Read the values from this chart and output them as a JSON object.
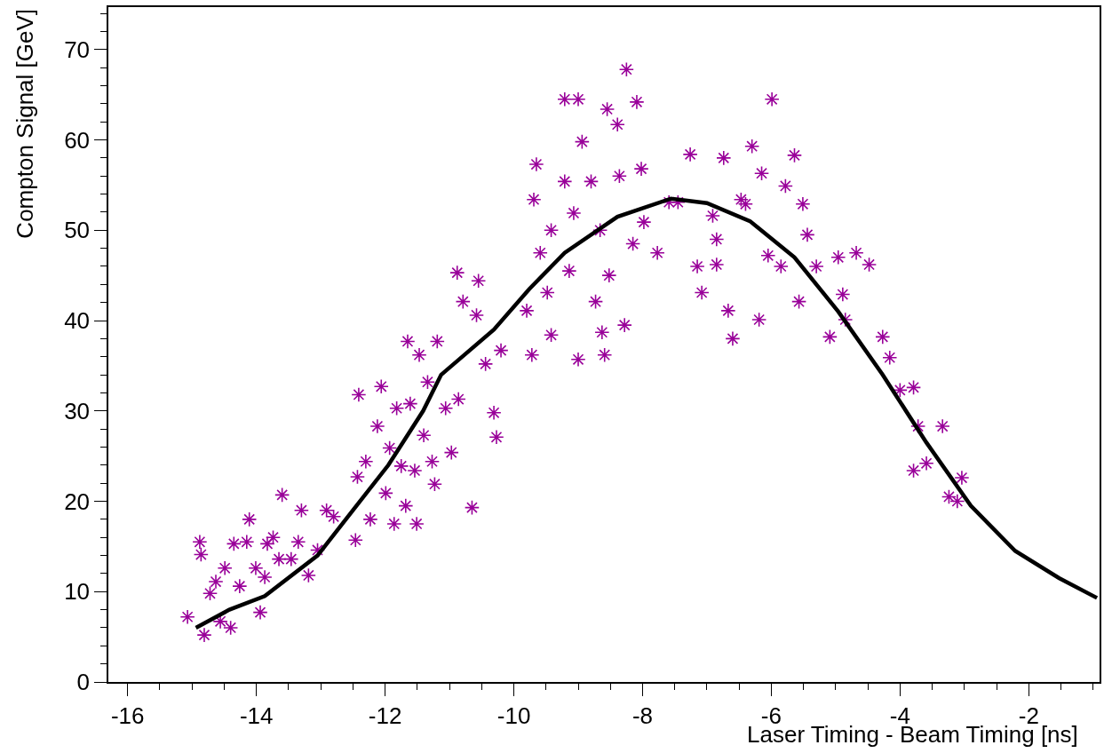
{
  "chart_data": {
    "type": "scatter",
    "xlabel": "Laser Timing - Beam Timing [ns]",
    "ylabel": "Compton Signal [GeV]",
    "xlim": [
      -16.3,
      -0.9
    ],
    "xticks": [
      -16,
      -14,
      -12,
      -10,
      -8,
      -6,
      -4,
      -2
    ],
    "ylim": [
      0,
      74.7
    ],
    "yticks": [
      0,
      10,
      20,
      30,
      40,
      50,
      60,
      70
    ],
    "series": [
      {
        "marker": "cross",
        "color": "#990099",
        "x": [
          -15.07,
          -14.88,
          -14.86,
          -14.81,
          -14.72,
          -14.63,
          -14.56,
          -14.49,
          -14.4,
          -14.35,
          -14.26,
          -14.15,
          -14.11,
          -14.01,
          -13.94,
          -13.87,
          -13.83,
          -13.74,
          -13.65,
          -13.6,
          -13.46,
          -13.35,
          -13.3,
          -13.19,
          -13.05,
          -12.91,
          -12.8,
          -12.46,
          -12.43,
          -12.41,
          -12.3,
          -12.23,
          -12.12,
          -12.06,
          -11.99,
          -11.93,
          -11.86,
          -11.82,
          -11.75,
          -11.68,
          -11.65,
          -11.61,
          -11.54,
          -11.51,
          -11.47,
          -11.4,
          -11.34,
          -11.27,
          -11.23,
          -11.19,
          -11.06,
          -10.97,
          -10.88,
          -10.86,
          -10.79,
          -10.65,
          -10.55,
          -10.58,
          -10.44,
          -10.31,
          -10.27,
          -10.2,
          -9.8,
          -9.72,
          -9.69,
          -9.59,
          -9.65,
          -9.48,
          -9.42,
          -9.42,
          -9.21,
          -9.21,
          -9.14,
          -9.07,
          -9.0,
          -9.0,
          -8.94,
          -8.8,
          -8.73,
          -8.66,
          -8.63,
          -8.55,
          -8.52,
          -8.59,
          -8.39,
          -8.36,
          -8.28,
          -8.25,
          -8.15,
          -8.09,
          -8.02,
          -7.98,
          -7.77,
          -7.59,
          -7.45,
          -7.26,
          -7.15,
          -7.08,
          -6.91,
          -6.85,
          -6.85,
          -6.74,
          -6.67,
          -6.6,
          -6.47,
          -6.4,
          -6.3,
          -6.19,
          -6.15,
          -6.05,
          -5.99,
          -5.85,
          -5.78,
          -5.64,
          -5.57,
          -5.51,
          -5.44,
          -5.3,
          -5.09,
          -4.96,
          -4.89,
          -4.85,
          -4.68,
          -4.48,
          -4.27,
          -4.16,
          -4.0,
          -3.79,
          -3.79,
          -3.72,
          -3.59,
          -3.34,
          -3.24,
          -3.11,
          -3.04
        ],
        "values": [
          7.2,
          15.5,
          14.1,
          5.2,
          9.8,
          11.1,
          6.7,
          12.6,
          6.0,
          15.3,
          10.6,
          15.5,
          18.0,
          12.6,
          7.7,
          11.6,
          15.3,
          16.0,
          13.6,
          20.7,
          13.6,
          15.5,
          19.0,
          11.8,
          14.6,
          19.0,
          18.3,
          15.7,
          22.7,
          31.8,
          24.4,
          18.0,
          28.3,
          32.7,
          20.9,
          25.9,
          17.5,
          30.3,
          23.9,
          19.5,
          37.7,
          30.8,
          23.4,
          17.5,
          36.2,
          27.3,
          33.2,
          24.4,
          21.9,
          37.7,
          30.3,
          25.4,
          45.3,
          31.3,
          42.1,
          19.3,
          44.4,
          40.6,
          35.2,
          29.8,
          27.1,
          36.7,
          41.1,
          36.2,
          53.4,
          47.5,
          57.3,
          43.1,
          50.0,
          38.4,
          64.5,
          55.4,
          45.5,
          51.9,
          64.5,
          35.7,
          59.8,
          55.4,
          42.1,
          50.0,
          38.7,
          63.4,
          45.0,
          36.2,
          61.7,
          56.0,
          39.5,
          67.8,
          48.5,
          64.2,
          56.8,
          50.9,
          47.5,
          53.1,
          53.1,
          58.4,
          46.0,
          43.1,
          51.6,
          46.2,
          49.0,
          58.0,
          41.1,
          38.0,
          53.4,
          52.9,
          59.3,
          40.1,
          56.3,
          47.2,
          64.5,
          46.0,
          54.9,
          58.3,
          42.1,
          52.9,
          49.5,
          46.0,
          38.2,
          47.0,
          42.9,
          40.1,
          47.5,
          46.2,
          38.2,
          35.9,
          32.3,
          32.6,
          23.4,
          28.3,
          24.2,
          28.3,
          20.5,
          20.0,
          22.6
        ]
      },
      {
        "type": "line",
        "marker": "none",
        "color": "#000000",
        "line_style": "solid",
        "x": [
          -14.94,
          -14.42,
          -13.87,
          -13.05,
          -12.5,
          -11.95,
          -11.41,
          -11.13,
          -10.31,
          -9.76,
          -9.21,
          -8.39,
          -7.56,
          -7.0,
          -6.33,
          -5.64,
          -4.96,
          -4.27,
          -3.59,
          -2.9,
          -2.21,
          -1.53,
          -0.94
        ],
        "values": [
          6,
          8,
          9.5,
          14,
          19,
          24,
          30,
          34,
          39,
          43.5,
          47.5,
          51.5,
          53.5,
          53,
          51,
          47,
          41,
          34,
          26.5,
          19.5,
          14.5,
          11.5,
          9.3
        ]
      }
    ]
  }
}
